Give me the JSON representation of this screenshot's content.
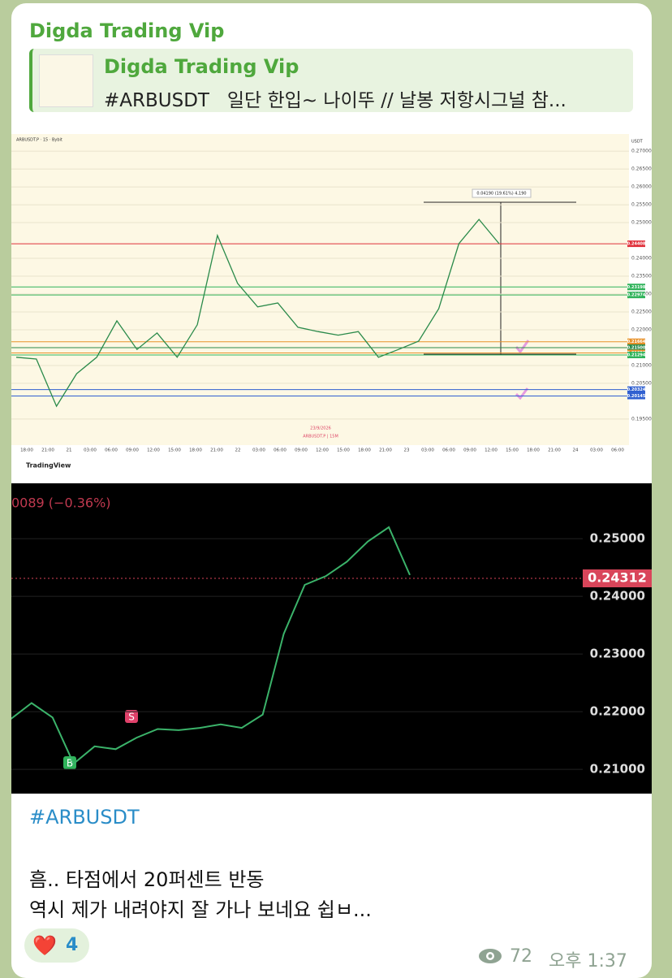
{
  "message": {
    "sender": "Digda Trading Vip",
    "reply": {
      "sender": "Digda Trading Vip",
      "text": "#ARBUSDT   일단 한입~ 나이뚜 // 날봉 저항시그널 참..."
    },
    "hashtag": "#ARBUSDT",
    "lines": [
      "흠.. 타점에서 20퍼센트 반동",
      "역시 제가 내려야지 잘 가나 보네요 쉽ㅂ..."
    ],
    "reaction": {
      "emoji": "❤️",
      "count": 4
    },
    "views": 72,
    "time": "오후 1:37"
  },
  "chart_data": [
    {
      "type": "line",
      "color": "#2a8a4a",
      "title": "ARBUSDT.P · 15 · Bybit",
      "annotations": [
        "USDT",
        "0.04190 (19.61%) 4,190",
        "23/9/2026",
        "ARBUSDT.P | 15M",
        "TradingView"
      ],
      "values": [
        0.2123,
        0.2118,
        0.1986,
        0.2077,
        0.2123,
        0.2225,
        0.2145,
        0.2191,
        0.2123,
        0.2214,
        0.2464,
        0.233,
        0.2264,
        0.2275,
        0.2207,
        0.2195,
        0.2185,
        0.2195,
        0.2123,
        0.2145,
        0.2168,
        0.2259,
        0.2441,
        0.2509,
        0.2441
      ],
      "ylim": [
        0.1877,
        0.2748
      ],
      "yticks": [
        {
          "value": 0.27,
          "label": "0.27000"
        },
        {
          "value": 0.265,
          "label": "0.26500"
        },
        {
          "value": 0.26,
          "label": "0.26000"
        },
        {
          "value": 0.255,
          "label": "0.25500"
        },
        {
          "value": 0.25,
          "label": "0.25000"
        },
        {
          "value": 0.24,
          "label": "0.24000"
        },
        {
          "value": 0.235,
          "label": "0.23500"
        },
        {
          "value": 0.23,
          "label": "0.23000"
        },
        {
          "value": 0.225,
          "label": "0.22500"
        },
        {
          "value": 0.22,
          "label": "0.22000"
        },
        {
          "value": 0.21,
          "label": "0.21000"
        },
        {
          "value": 0.205,
          "label": "0.20500"
        },
        {
          "value": 0.195,
          "label": "0.19500"
        }
      ],
      "price_labels": [
        {
          "value": 0.24408,
          "label": "0.24408",
          "color": "#e0313b"
        },
        {
          "value": 0.23198,
          "label": "0.23198",
          "color": "#2fb35a"
        },
        {
          "value": 0.22974,
          "label": "0.22974",
          "color": "#2fb35a"
        },
        {
          "value": 0.21664,
          "label": "0.21664",
          "color": "#e8912a"
        },
        {
          "value": 0.215,
          "label": "0.21500",
          "color": "#2a8a4a"
        },
        {
          "value": 0.2135,
          "label": "0.21350",
          "color": "#e8912a"
        },
        {
          "value": 0.21294,
          "label": "0.21294",
          "color": "#2fb35a"
        },
        {
          "value": 0.20324,
          "label": "0.20324",
          "color": "#2f5fd0"
        },
        {
          "value": 0.20145,
          "label": "0.20145",
          "color": "#2f5fd0"
        }
      ],
      "xtick_labels": [
        "18:00",
        "21:00",
        "21",
        "03:00",
        "06:00",
        "09:00",
        "12:00",
        "15:00",
        "18:00",
        "21:00",
        "22",
        "03:00",
        "06:00",
        "09:00",
        "12:00",
        "15:00",
        "18:00",
        "21:00",
        "23",
        "03:00",
        "06:00",
        "09:00",
        "12:00",
        "15:00",
        "18:00",
        "21:00",
        "24",
        "03:00",
        "06:00"
      ]
    },
    {
      "type": "line",
      "color": "#3bb36a",
      "title": "0089 (−0.36%)",
      "values": [
        0.2187,
        0.2215,
        0.219,
        0.211,
        0.214,
        0.2135,
        0.2155,
        0.217,
        0.2168,
        0.2172,
        0.2178,
        0.2172,
        0.2195,
        0.2335,
        0.242,
        0.2435,
        0.246,
        0.2495,
        0.252,
        0.2437
      ],
      "ylim": [
        0.2058,
        0.2596
      ],
      "yticks": [
        {
          "value": 0.25,
          "label": "0.25000"
        },
        {
          "value": 0.24,
          "label": "0.24000"
        },
        {
          "value": 0.23,
          "label": "0.23000"
        },
        {
          "value": 0.22,
          "label": "0.22000"
        },
        {
          "value": 0.21,
          "label": "0.21000"
        }
      ],
      "price_labels": [
        {
          "value": 0.24312,
          "label": "0.24312",
          "color": "#d9455a"
        }
      ],
      "markers": [
        "S",
        "B"
      ]
    }
  ]
}
